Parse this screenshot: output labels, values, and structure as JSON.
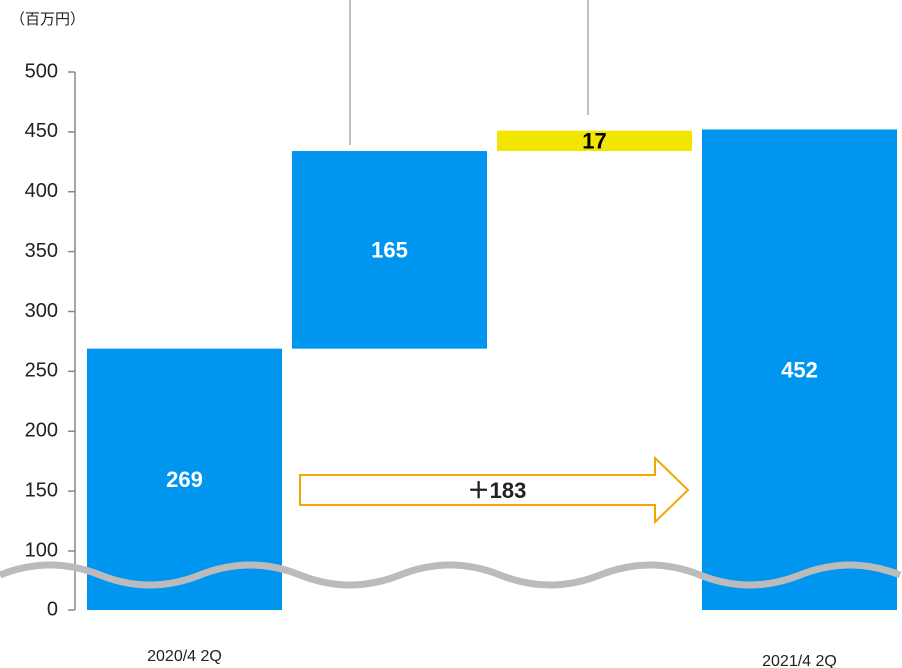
{
  "chart_data": {
    "type": "waterfall",
    "unit_label": "（百万円）",
    "categories": [
      "2020/4 2Q",
      null,
      null,
      "2021/4 2Q"
    ],
    "values": [
      269,
      165,
      17,
      452
    ],
    "measures": [
      "absolute",
      "relative",
      "relative",
      "total"
    ],
    "colors": [
      "#0096f0",
      "#0096f0",
      "#f2e600",
      "#0096f0"
    ],
    "label_colors": [
      "#ffffff",
      "#ffffff",
      "#000000",
      "#ffffff"
    ],
    "annotation": "＋183",
    "ylim": [
      0,
      500
    ],
    "yticks": [
      0,
      100,
      150,
      200,
      250,
      300,
      350,
      400,
      450,
      500
    ],
    "axis_break": 100
  }
}
